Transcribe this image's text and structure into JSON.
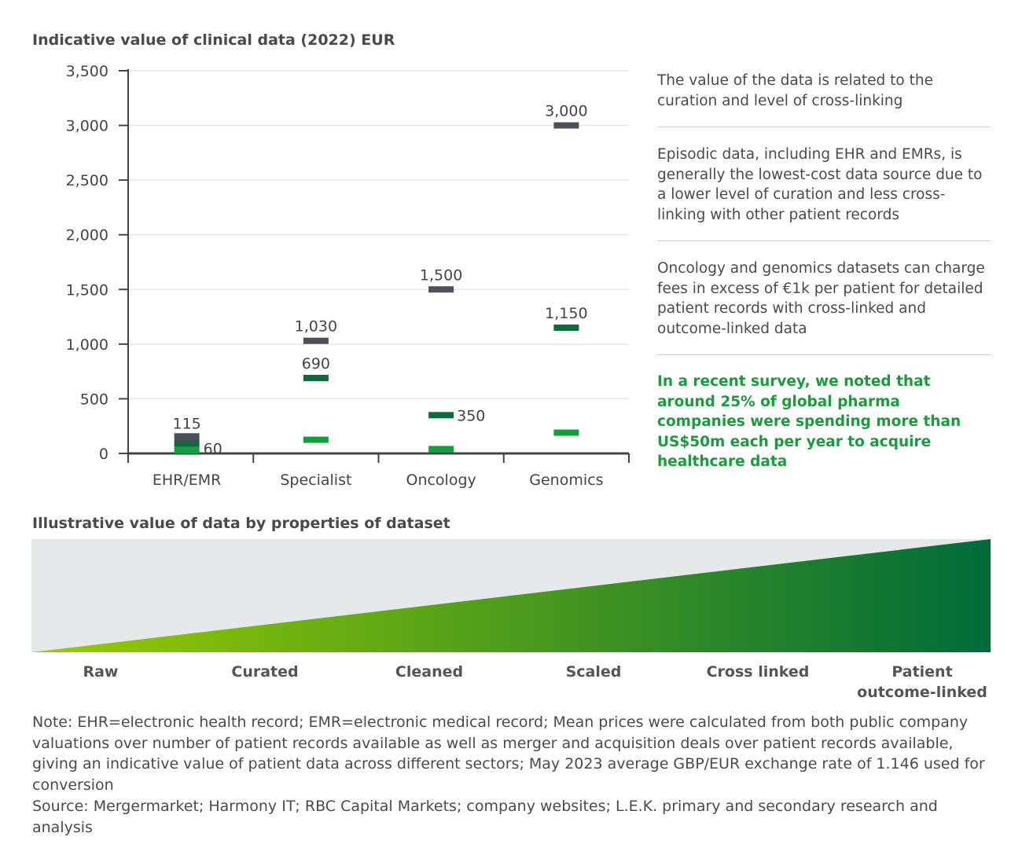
{
  "chart_data": {
    "type": "scatter",
    "title": "Indicative value of clinical data (2022) EUR",
    "categories": [
      "EHR/EMR",
      "Specialist",
      "Oncology",
      "Genomics"
    ],
    "ylim": [
      0,
      3500
    ],
    "yticks": [
      "0",
      "500",
      "1,000",
      "1,500",
      "2,000",
      "2,500",
      "3,000",
      "3,500"
    ],
    "ytick_values": [
      0,
      500,
      1000,
      1500,
      2000,
      2500,
      3000,
      3500
    ],
    "grid": true,
    "series": [
      {
        "color": "#4d5157",
        "values": [
          185,
          1030,
          1500,
          3000
        ],
        "labels": [
          "",
          "1,030",
          "1,500",
          "3,000"
        ]
      },
      {
        "color": "#0b6b3a",
        "values": [
          115,
          690,
          350,
          1150
        ],
        "labels": [
          "115",
          "690",
          "350",
          "1,150"
        ]
      },
      {
        "color": "#12a03c",
        "values": [
          60,
          125,
          40,
          190
        ],
        "labels": [
          "60",
          "",
          "",
          ""
        ]
      }
    ]
  },
  "side": {
    "p1": "The value of the data is related to the curation and level of cross-linking",
    "p2": "Episodic data, including EHR and EMRs, is generally the lowest-cost data source due to a lower level of curation and less cross-linking with other patient records",
    "p3": "Oncology and genomics datasets can charge fees in excess of €1k per patient for detailed patient records with cross-linked and outcome-linked data",
    "highlight": "In a recent survey, we noted that around 25% of global pharma companies were spending more than US$50m each per year to acquire healthcare data"
  },
  "illustrative": {
    "title": "Illustrative value of data by properties of dataset",
    "stages": [
      "Raw",
      "Curated",
      "Cleaned",
      "Scaled",
      "Cross linked",
      "Patient outcome-linked"
    ],
    "colors": {
      "start": "#9bcc00",
      "end": "#006b3a",
      "background": "#e6e9ea"
    }
  },
  "note": "Note: EHR=electronic health record; EMR=electronic medical record; Mean prices were calculated from both public company valuations over number of patient records available as well as merger and acquisition deals over patient records available, giving an indicative value of patient data across different sectors; May 2023 average GBP/EUR exchange rate of 1.146 used for conversion",
  "source": "Source: Mergermarket; Harmony IT; RBC Capital Markets; company websites; L.E.K. primary and secondary research and analysis"
}
